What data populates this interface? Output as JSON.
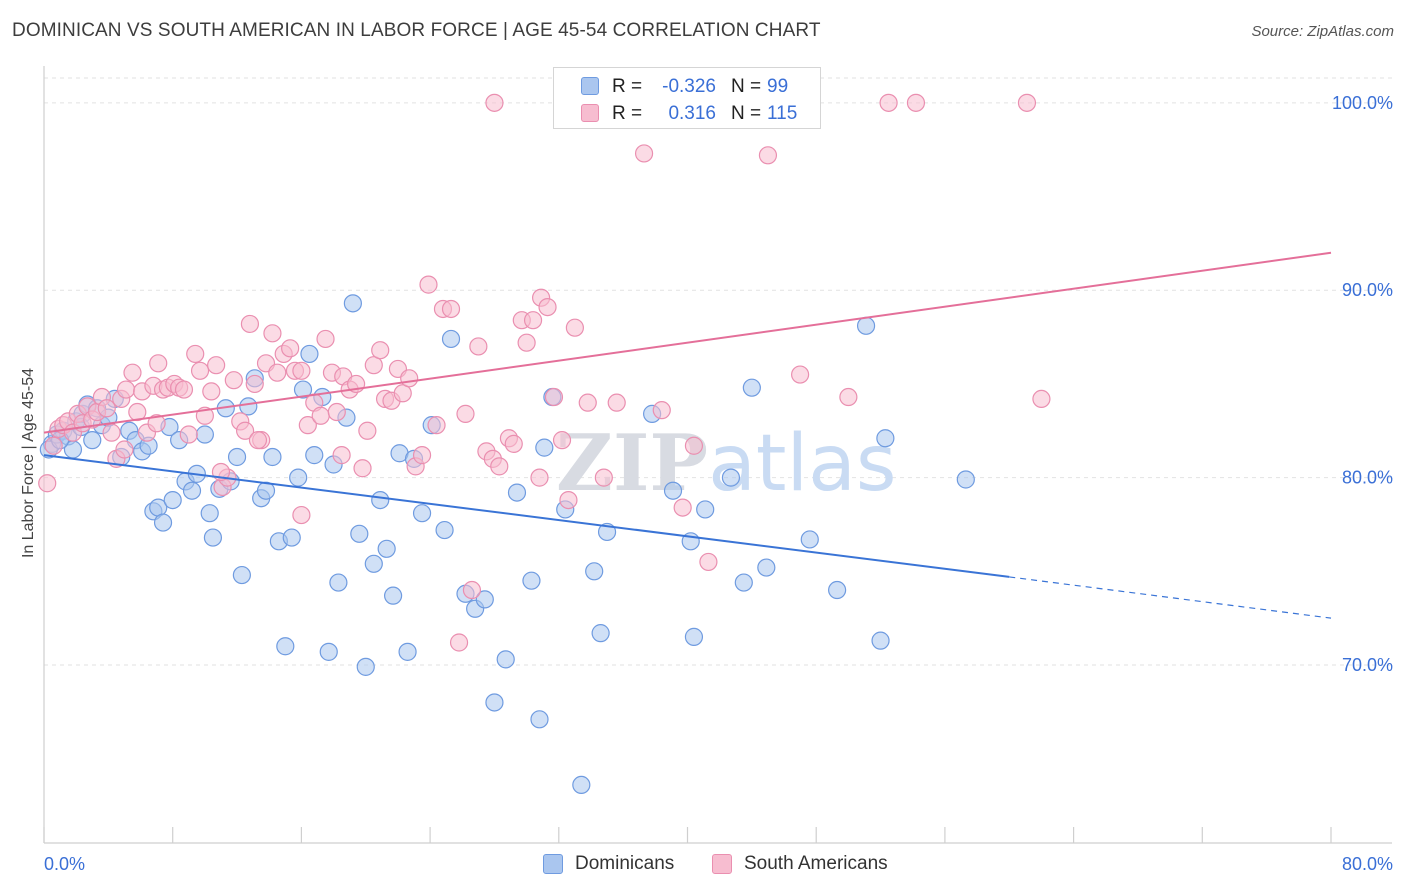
{
  "title": "DOMINICAN VS SOUTH AMERICAN IN LABOR FORCE | AGE 45-54 CORRELATION CHART",
  "source": "Source: ZipAtlas.com",
  "watermark": {
    "part1": "ZIP",
    "part2": "atlas"
  },
  "legend": {
    "rows": [
      {
        "r_label": "R =",
        "r_value": "-0.326",
        "n_label": "N =",
        "n_value": "99",
        "fill": "#aac6ef",
        "stroke": "#6f9be0"
      },
      {
        "r_label": "R =",
        "r_value": "0.316",
        "n_label": "N =",
        "n_value": "115",
        "fill": "#f7bdd0",
        "stroke": "#ea8fb0"
      }
    ]
  },
  "bottom_legend": [
    {
      "label": "Dominicans",
      "fill": "#aac6ef",
      "stroke": "#6f9be0"
    },
    {
      "label": "South Americans",
      "fill": "#f7bdd0",
      "stroke": "#ea8fb0"
    }
  ],
  "chart_data": {
    "type": "scatter",
    "title": "DOMINICAN VS SOUTH AMERICAN IN LABOR FORCE | AGE 45-54 CORRELATION CHART",
    "xlabel": "",
    "ylabel": "In Labor Force | Age 45-54",
    "xlim": [
      0,
      80
    ],
    "ylim": [
      60.5,
      102.5
    ],
    "x_tick_labels": [
      "0.0%",
      "80.0%"
    ],
    "y_ticks": [
      70,
      80,
      90,
      100
    ],
    "y_tick_labels": [
      "70.0%",
      "80.0%",
      "90.0%",
      "100.0%"
    ],
    "grid": true,
    "legend_position": "top-center",
    "colors": {
      "Dominicans": "#3a74d6",
      "South Americans": "#e46f99",
      "tick_label": "#3a6fd6"
    },
    "series": [
      {
        "name": "Dominicans",
        "color": "#6f9be0",
        "fill": "#aac6ef",
        "trend": {
          "x0": 0,
          "y0": 81.2,
          "x1": 60,
          "y1": 74.7,
          "dash_to_x": 80,
          "dash_to_y": 72.5
        },
        "points": [
          [
            0.5,
            81.8
          ],
          [
            0.8,
            82.3
          ],
          [
            1.2,
            82.5
          ],
          [
            1.5,
            82.2
          ],
          [
            1.8,
            81.5
          ],
          [
            2.0,
            83.0
          ],
          [
            2.4,
            83.4
          ],
          [
            2.7,
            83.9
          ],
          [
            3.0,
            82.0
          ],
          [
            3.3,
            83.7
          ],
          [
            3.6,
            82.8
          ],
          [
            4.0,
            83.2
          ],
          [
            4.4,
            84.2
          ],
          [
            4.8,
            81.1
          ],
          [
            5.3,
            82.5
          ],
          [
            5.7,
            82.0
          ],
          [
            6.1,
            81.4
          ],
          [
            6.5,
            81.7
          ],
          [
            6.8,
            78.2
          ],
          [
            7.1,
            78.4
          ],
          [
            7.4,
            77.6
          ],
          [
            7.8,
            82.7
          ],
          [
            8.0,
            78.8
          ],
          [
            8.4,
            82.0
          ],
          [
            8.8,
            79.8
          ],
          [
            9.2,
            79.3
          ],
          [
            9.5,
            80.2
          ],
          [
            10.0,
            82.3
          ],
          [
            10.3,
            78.1
          ],
          [
            10.5,
            76.8
          ],
          [
            10.9,
            79.4
          ],
          [
            11.3,
            83.7
          ],
          [
            11.6,
            79.8
          ],
          [
            12.0,
            81.1
          ],
          [
            12.3,
            74.8
          ],
          [
            12.7,
            83.8
          ],
          [
            13.1,
            85.3
          ],
          [
            13.5,
            78.9
          ],
          [
            13.8,
            79.3
          ],
          [
            14.2,
            81.1
          ],
          [
            14.6,
            76.6
          ],
          [
            15.0,
            71.0
          ],
          [
            15.4,
            76.8
          ],
          [
            15.8,
            80.0
          ],
          [
            16.1,
            84.7
          ],
          [
            16.5,
            86.6
          ],
          [
            16.8,
            81.2
          ],
          [
            17.3,
            84.3
          ],
          [
            17.7,
            70.7
          ],
          [
            18.0,
            80.7
          ],
          [
            18.3,
            74.4
          ],
          [
            18.8,
            83.2
          ],
          [
            19.2,
            89.3
          ],
          [
            19.6,
            77.0
          ],
          [
            20.0,
            69.9
          ],
          [
            20.5,
            75.4
          ],
          [
            20.9,
            78.8
          ],
          [
            21.3,
            76.2
          ],
          [
            21.7,
            73.7
          ],
          [
            22.1,
            81.3
          ],
          [
            22.6,
            70.7
          ],
          [
            23.0,
            81.0
          ],
          [
            23.5,
            78.1
          ],
          [
            24.1,
            82.8
          ],
          [
            24.9,
            77.2
          ],
          [
            25.3,
            87.4
          ],
          [
            26.2,
            73.8
          ],
          [
            26.8,
            73.0
          ],
          [
            27.4,
            73.5
          ],
          [
            28.0,
            68.0
          ],
          [
            28.7,
            70.3
          ],
          [
            29.4,
            79.2
          ],
          [
            30.3,
            74.5
          ],
          [
            30.8,
            67.1
          ],
          [
            31.1,
            81.6
          ],
          [
            31.6,
            84.3
          ],
          [
            32.4,
            78.3
          ],
          [
            33.4,
            63.6
          ],
          [
            34.2,
            75.0
          ],
          [
            34.6,
            71.7
          ],
          [
            35.0,
            77.1
          ],
          [
            37.8,
            83.4
          ],
          [
            39.1,
            79.3
          ],
          [
            40.2,
            76.6
          ],
          [
            40.4,
            71.5
          ],
          [
            41.1,
            78.3
          ],
          [
            42.7,
            80.0
          ],
          [
            43.5,
            74.4
          ],
          [
            44.0,
            84.8
          ],
          [
            44.9,
            75.2
          ],
          [
            47.6,
            76.7
          ],
          [
            49.3,
            74.0
          ],
          [
            51.1,
            88.1
          ],
          [
            52.0,
            71.3
          ],
          [
            52.3,
            82.1
          ],
          [
            57.3,
            79.9
          ],
          [
            0.3,
            81.5
          ],
          [
            1.0,
            82.0
          ],
          [
            2.3,
            82.7
          ]
        ]
      },
      {
        "name": "South Americans",
        "color": "#ea8fb0",
        "fill": "#f7bdd0",
        "trend": {
          "x0": 0,
          "y0": 82.4,
          "x1": 80,
          "y1": 92.0
        },
        "points": [
          [
            0.2,
            79.7
          ],
          [
            0.6,
            81.7
          ],
          [
            0.9,
            82.6
          ],
          [
            1.2,
            82.8
          ],
          [
            1.5,
            83.0
          ],
          [
            1.8,
            82.4
          ],
          [
            2.1,
            83.4
          ],
          [
            2.4,
            82.9
          ],
          [
            2.7,
            83.8
          ],
          [
            3.0,
            83.1
          ],
          [
            3.3,
            83.5
          ],
          [
            3.6,
            84.3
          ],
          [
            3.9,
            83.7
          ],
          [
            4.2,
            82.4
          ],
          [
            4.5,
            81.0
          ],
          [
            4.8,
            84.2
          ],
          [
            5.1,
            84.7
          ],
          [
            5.5,
            85.6
          ],
          [
            5.8,
            83.5
          ],
          [
            6.1,
            84.6
          ],
          [
            6.4,
            82.4
          ],
          [
            6.8,
            84.9
          ],
          [
            7.1,
            86.1
          ],
          [
            7.4,
            84.7
          ],
          [
            7.7,
            84.8
          ],
          [
            8.1,
            85.0
          ],
          [
            8.4,
            84.8
          ],
          [
            8.7,
            84.7
          ],
          [
            9.0,
            82.3
          ],
          [
            9.4,
            86.6
          ],
          [
            9.7,
            85.7
          ],
          [
            10.0,
            83.3
          ],
          [
            10.4,
            84.6
          ],
          [
            10.7,
            86.0
          ],
          [
            11.1,
            79.5
          ],
          [
            11.4,
            80.0
          ],
          [
            11.8,
            85.2
          ],
          [
            12.2,
            83.0
          ],
          [
            12.5,
            82.5
          ],
          [
            12.8,
            88.2
          ],
          [
            13.1,
            85.0
          ],
          [
            13.5,
            82.0
          ],
          [
            13.8,
            86.1
          ],
          [
            14.2,
            87.7
          ],
          [
            14.5,
            85.6
          ],
          [
            14.9,
            86.6
          ],
          [
            15.3,
            86.9
          ],
          [
            15.6,
            85.7
          ],
          [
            16.0,
            85.7
          ],
          [
            16.4,
            82.8
          ],
          [
            16.8,
            84.0
          ],
          [
            17.2,
            83.3
          ],
          [
            17.5,
            87.4
          ],
          [
            17.9,
            85.6
          ],
          [
            18.2,
            83.5
          ],
          [
            18.6,
            85.4
          ],
          [
            19.0,
            84.7
          ],
          [
            19.4,
            85.0
          ],
          [
            19.8,
            80.5
          ],
          [
            20.1,
            82.5
          ],
          [
            20.5,
            86.0
          ],
          [
            20.9,
            86.8
          ],
          [
            21.2,
            84.2
          ],
          [
            21.6,
            84.1
          ],
          [
            22.0,
            85.8
          ],
          [
            22.3,
            84.5
          ],
          [
            22.7,
            85.3
          ],
          [
            23.1,
            80.6
          ],
          [
            23.5,
            81.2
          ],
          [
            23.9,
            90.3
          ],
          [
            24.4,
            82.8
          ],
          [
            24.8,
            89.0
          ],
          [
            25.3,
            89.0
          ],
          [
            25.8,
            71.2
          ],
          [
            26.2,
            83.4
          ],
          [
            26.6,
            74.0
          ],
          [
            27.0,
            87.0
          ],
          [
            27.5,
            81.4
          ],
          [
            27.9,
            81.0
          ],
          [
            28.3,
            80.6
          ],
          [
            28.9,
            82.1
          ],
          [
            29.2,
            81.8
          ],
          [
            29.7,
            88.4
          ],
          [
            30.0,
            87.2
          ],
          [
            30.4,
            88.4
          ],
          [
            30.9,
            89.6
          ],
          [
            31.3,
            89.1
          ],
          [
            31.7,
            84.3
          ],
          [
            32.2,
            82.0
          ],
          [
            32.6,
            78.8
          ],
          [
            33.0,
            88.0
          ],
          [
            33.8,
            84.0
          ],
          [
            34.8,
            80.0
          ],
          [
            35.6,
            84.0
          ],
          [
            37.3,
            97.3
          ],
          [
            38.4,
            83.6
          ],
          [
            39.7,
            78.4
          ],
          [
            40.4,
            81.7
          ],
          [
            41.3,
            75.5
          ],
          [
            45.0,
            97.2
          ],
          [
            47.0,
            85.5
          ],
          [
            50.0,
            84.3
          ],
          [
            52.5,
            100.0
          ],
          [
            28.0,
            100.0
          ],
          [
            36.0,
            100.0
          ],
          [
            54.2,
            100.0
          ],
          [
            61.1,
            100.0
          ],
          [
            62.0,
            84.2
          ],
          [
            30.8,
            80.0
          ],
          [
            5.0,
            81.5
          ],
          [
            7.0,
            82.9
          ],
          [
            11.0,
            80.3
          ],
          [
            13.3,
            82.0
          ],
          [
            16.0,
            78.0
          ],
          [
            18.5,
            81.2
          ]
        ]
      }
    ]
  }
}
